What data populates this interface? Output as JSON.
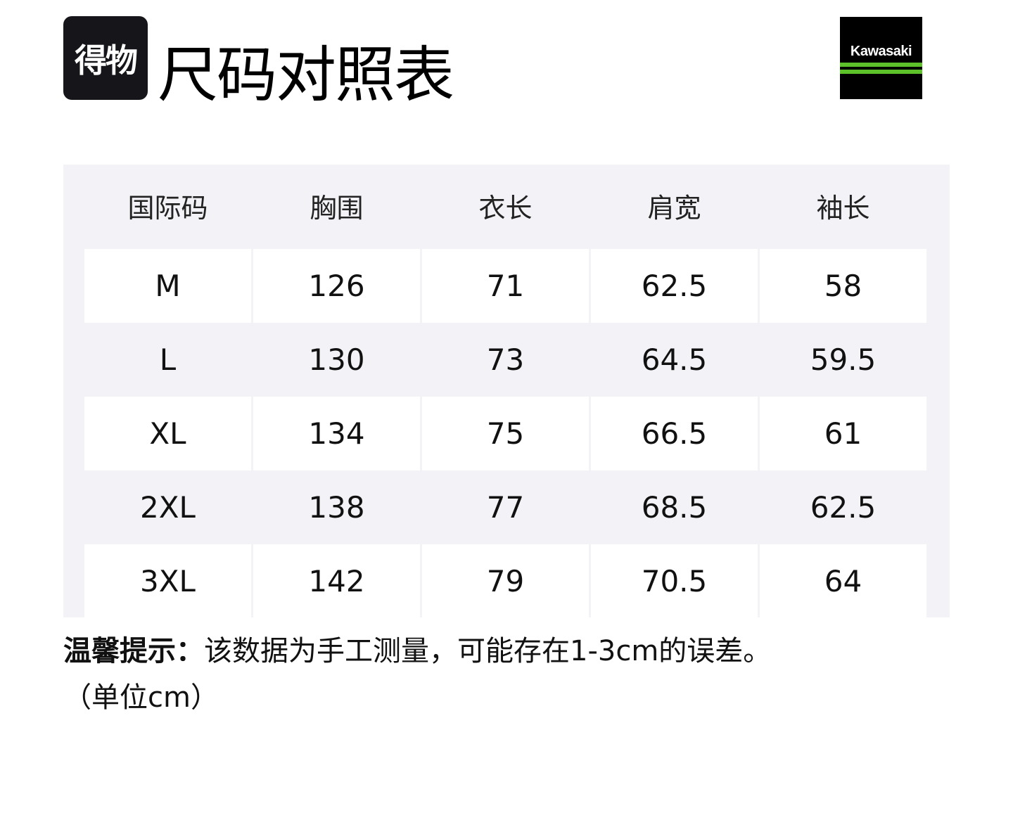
{
  "header": {
    "app_logo_text": "得物",
    "title": "尺码对照表",
    "brand_logo_text": "Kawasaki"
  },
  "table": {
    "columns": [
      "国际码",
      "胸围",
      "衣长",
      "肩宽",
      "袖长"
    ],
    "rows": [
      [
        "M",
        "126",
        "71",
        "62.5",
        "58"
      ],
      [
        "L",
        "130",
        "73",
        "64.5",
        "59.5"
      ],
      [
        "XL",
        "134",
        "75",
        "66.5",
        "61"
      ],
      [
        "2XL",
        "138",
        "77",
        "68.5",
        "62.5"
      ],
      [
        "3XL",
        "142",
        "79",
        "70.5",
        "64"
      ]
    ]
  },
  "note": {
    "label": "温馨提示：",
    "text": "该数据为手工测量，可能存在1-3cm的误差。",
    "unit": "（单位cm）"
  },
  "colors": {
    "table_bg": "#f3f3f7",
    "brand_green": "#5dc22a"
  }
}
